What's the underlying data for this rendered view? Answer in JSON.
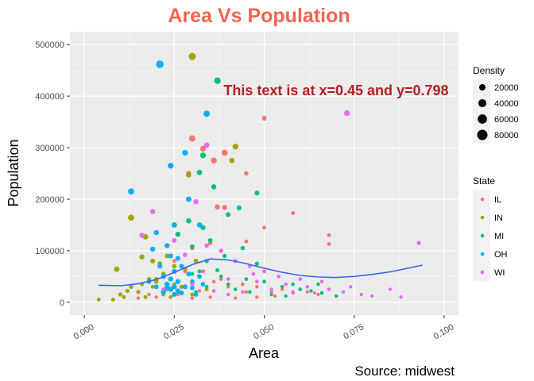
{
  "chart_data": {
    "type": "scatter",
    "title": "Area Vs Population",
    "xlabel": "Area",
    "ylabel": "Population",
    "caption": "Source: midwest",
    "annotation": {
      "text": "This text is at x=0.45 and y=0.798"
    },
    "xlim": [
      -0.004,
      0.104
    ],
    "ylim": [
      -25000,
      525000
    ],
    "x_ticks": [
      0.0,
      0.025,
      0.05,
      0.075,
      0.1
    ],
    "x_tick_labels": [
      "0.000",
      "0.025",
      "0.050",
      "0.075",
      "0.100"
    ],
    "y_ticks": [
      0,
      100000,
      200000,
      300000,
      400000,
      500000
    ],
    "y_tick_labels": [
      "0",
      "100000",
      "200000",
      "300000",
      "400000",
      "500000"
    ],
    "grid": true,
    "legend_position": "right",
    "size_legend": {
      "title": "Density",
      "labels": [
        "20000",
        "40000",
        "60000",
        "80000"
      ],
      "values": [
        20000,
        40000,
        60000,
        80000
      ]
    },
    "color_legend": {
      "title": "State",
      "labels": [
        "IL",
        "IN",
        "MI",
        "OH",
        "WI"
      ]
    },
    "colors": {
      "IL": "#F8766D",
      "IN": "#A3A500",
      "MI": "#00BF7D",
      "OH": "#00B0F6",
      "WI": "#E76BF3",
      "smooth": "#3366FF",
      "title": "#F26450",
      "annotation": "#B22222"
    },
    "series": [
      {
        "name": "IL",
        "points": [
          [
            0.03,
            318000,
            20000
          ],
          [
            0.033,
            298000,
            13000
          ],
          [
            0.036,
            275000,
            16000
          ],
          [
            0.039,
            290000,
            18000
          ],
          [
            0.029,
            250000,
            9000
          ],
          [
            0.037,
            185000,
            10000
          ],
          [
            0.039,
            184000,
            9000
          ],
          [
            0.045,
            250000,
            6000
          ],
          [
            0.05,
            357000,
            8000
          ],
          [
            0.058,
            173000,
            3000
          ],
          [
            0.068,
            130000,
            2500
          ],
          [
            0.068,
            113000,
            2500
          ],
          [
            0.05,
            145000,
            3000
          ],
          [
            0.045,
            118000,
            3000
          ],
          [
            0.035,
            115000,
            4000
          ],
          [
            0.03,
            105000,
            4000
          ],
          [
            0.025,
            80000,
            3000
          ],
          [
            0.028,
            60000,
            3000
          ],
          [
            0.033,
            60000,
            3000
          ],
          [
            0.038,
            45000,
            2000
          ],
          [
            0.04,
            30000,
            1500
          ],
          [
            0.042,
            25000,
            1500
          ],
          [
            0.045,
            20000,
            1500
          ],
          [
            0.048,
            30000,
            1500
          ],
          [
            0.052,
            20000,
            1500
          ],
          [
            0.055,
            25000,
            1500
          ],
          [
            0.058,
            18000,
            1500
          ],
          [
            0.062,
            20000,
            1500
          ],
          [
            0.065,
            15000,
            1500
          ],
          [
            0.07,
            12000,
            1500
          ],
          [
            0.022,
            20000,
            1500
          ],
          [
            0.018,
            15000,
            1500
          ],
          [
            0.026,
            15000,
            1500
          ],
          [
            0.03,
            8000,
            1500
          ],
          [
            0.035,
            10000,
            1500
          ],
          [
            0.042,
            8000,
            1500
          ],
          [
            0.048,
            10000,
            1500
          ],
          [
            0.053,
            12000,
            1500
          ],
          [
            0.02,
            10000,
            1500
          ],
          [
            0.015,
            8000,
            1500
          ],
          [
            0.044,
            35000,
            2000
          ],
          [
            0.036,
            40000,
            2000
          ],
          [
            0.032,
            22000,
            1500
          ],
          [
            0.028,
            30000,
            2000
          ]
        ]
      },
      {
        "name": "IN",
        "points": [
          [
            0.03,
            477000,
            30000
          ],
          [
            0.042,
            302000,
            15000
          ],
          [
            0.041,
            275000,
            12000
          ],
          [
            0.029,
            247000,
            10000
          ],
          [
            0.013,
            164000,
            18000
          ],
          [
            0.017,
            127000,
            12000
          ],
          [
            0.016,
            88000,
            10000
          ],
          [
            0.009,
            64000,
            12000
          ],
          [
            0.019,
            80000,
            8000
          ],
          [
            0.021,
            75000,
            7000
          ],
          [
            0.025,
            70000,
            6000
          ],
          [
            0.028,
            65000,
            5000
          ],
          [
            0.031,
            80000,
            6000
          ],
          [
            0.022,
            55000,
            6000
          ],
          [
            0.018,
            45000,
            5000
          ],
          [
            0.02,
            40000,
            5000
          ],
          [
            0.013,
            30000,
            5000
          ],
          [
            0.012,
            22000,
            4000
          ],
          [
            0.015,
            20000,
            4000
          ],
          [
            0.01,
            15000,
            4000
          ],
          [
            0.011,
            10000,
            3000
          ],
          [
            0.004,
            5000,
            3000
          ],
          [
            0.008,
            5000,
            3000
          ],
          [
            0.025,
            35000,
            4000
          ],
          [
            0.027,
            30000,
            4000
          ],
          [
            0.023,
            25000,
            3000
          ],
          [
            0.019,
            30000,
            3000
          ],
          [
            0.016,
            35000,
            3000
          ],
          [
            0.022,
            15000,
            3000
          ],
          [
            0.026,
            20000,
            3000
          ],
          [
            0.03,
            15000,
            3000
          ],
          [
            0.034,
            25000,
            3000
          ],
          [
            0.024,
            10000,
            3000
          ],
          [
            0.017,
            10000,
            3000
          ],
          [
            0.02,
            45000,
            5000
          ],
          [
            0.023,
            90000,
            7000
          ]
        ]
      },
      {
        "name": "MI",
        "points": [
          [
            0.037,
            430000,
            22000
          ],
          [
            0.033,
            285000,
            15000
          ],
          [
            0.032,
            252000,
            12000
          ],
          [
            0.036,
            224000,
            10000
          ],
          [
            0.048,
            212000,
            8000
          ],
          [
            0.043,
            183000,
            8000
          ],
          [
            0.04,
            170000,
            7000
          ],
          [
            0.029,
            158000,
            10000
          ],
          [
            0.033,
            145000,
            9000
          ],
          [
            0.026,
            132000,
            9000
          ],
          [
            0.035,
            120000,
            6000
          ],
          [
            0.03,
            108000,
            6000
          ],
          [
            0.044,
            105000,
            5000
          ],
          [
            0.039,
            90000,
            4000
          ],
          [
            0.034,
            80000,
            4000
          ],
          [
            0.048,
            75000,
            4000
          ],
          [
            0.037,
            62000,
            3000
          ],
          [
            0.03,
            55000,
            3000
          ],
          [
            0.045,
            45000,
            2500
          ],
          [
            0.05,
            40000,
            2500
          ],
          [
            0.055,
            30000,
            2000
          ],
          [
            0.058,
            35000,
            2000
          ],
          [
            0.06,
            25000,
            2000
          ],
          [
            0.063,
            22000,
            2000
          ],
          [
            0.066,
            18000,
            2000
          ],
          [
            0.07,
            12000,
            1500
          ],
          [
            0.038,
            50000,
            2500
          ],
          [
            0.04,
            35000,
            2000
          ],
          [
            0.042,
            25000,
            2000
          ],
          [
            0.046,
            20000,
            2000
          ],
          [
            0.034,
            30000,
            2000
          ],
          [
            0.031,
            20000,
            2000
          ],
          [
            0.052,
            15000,
            1500
          ],
          [
            0.056,
            12000,
            1500
          ],
          [
            0.065,
            35000,
            2000
          ],
          [
            0.032,
            60000,
            3000
          ]
        ]
      },
      {
        "name": "OH",
        "points": [
          [
            0.021,
            462000,
            35000
          ],
          [
            0.034,
            366000,
            20000
          ],
          [
            0.024,
            265000,
            15000
          ],
          [
            0.028,
            290000,
            15000
          ],
          [
            0.013,
            215000,
            18000
          ],
          [
            0.029,
            200000,
            12000
          ],
          [
            0.032,
            150000,
            10000
          ],
          [
            0.025,
            150000,
            12000
          ],
          [
            0.02,
            135000,
            10000
          ],
          [
            0.023,
            110000,
            9000
          ],
          [
            0.019,
            103000,
            9000
          ],
          [
            0.024,
            90000,
            8000
          ],
          [
            0.026,
            85000,
            8000
          ],
          [
            0.021,
            70000,
            8000
          ],
          [
            0.025,
            60000,
            8000
          ],
          [
            0.022,
            50000,
            8000
          ],
          [
            0.024,
            45000,
            9000
          ],
          [
            0.026,
            40000,
            9000
          ],
          [
            0.023,
            35000,
            10000
          ],
          [
            0.025,
            30000,
            10000
          ],
          [
            0.024,
            25000,
            10000
          ],
          [
            0.022,
            20000,
            9000
          ],
          [
            0.026,
            22000,
            9000
          ],
          [
            0.028,
            30000,
            8000
          ],
          [
            0.03,
            40000,
            7000
          ],
          [
            0.032,
            50000,
            7000
          ],
          [
            0.03,
            28000,
            7000
          ],
          [
            0.027,
            18000,
            7000
          ],
          [
            0.031,
            15000,
            6000
          ],
          [
            0.02,
            30000,
            6000
          ],
          [
            0.018,
            40000,
            6000
          ],
          [
            0.033,
            35000,
            6000
          ],
          [
            0.029,
            55000,
            7000
          ],
          [
            0.027,
            70000,
            7000
          ],
          [
            0.025,
            15000,
            8000
          ],
          [
            0.023,
            28000,
            9000
          ]
        ]
      },
      {
        "name": "WI",
        "points": [
          [
            0.073,
            367000,
            15000
          ],
          [
            0.034,
            305000,
            12000
          ],
          [
            0.031,
            195000,
            10000
          ],
          [
            0.019,
            176000,
            10000
          ],
          [
            0.016,
            130000,
            9000
          ],
          [
            0.025,
            120000,
            7000
          ],
          [
            0.093,
            115000,
            4000
          ],
          [
            0.034,
            110000,
            6000
          ],
          [
            0.038,
            100000,
            5000
          ],
          [
            0.028,
            92000,
            5000
          ],
          [
            0.042,
            80000,
            4000
          ],
          [
            0.046,
            70000,
            3000
          ],
          [
            0.05,
            60000,
            3000
          ],
          [
            0.054,
            50000,
            2500
          ],
          [
            0.048,
            40000,
            2500
          ],
          [
            0.056,
            35000,
            2000
          ],
          [
            0.062,
            30000,
            2000
          ],
          [
            0.068,
            25000,
            2000
          ],
          [
            0.072,
            20000,
            1500
          ],
          [
            0.077,
            15000,
            1500
          ],
          [
            0.08,
            12000,
            1500
          ],
          [
            0.088,
            10000,
            1500
          ],
          [
            0.058,
            20000,
            2000
          ],
          [
            0.052,
            25000,
            2000
          ],
          [
            0.044,
            20000,
            2000
          ],
          [
            0.04,
            15000,
            2000
          ],
          [
            0.036,
            22000,
            2000
          ],
          [
            0.066,
            40000,
            2000
          ],
          [
            0.06,
            45000,
            2000
          ],
          [
            0.064,
            18000,
            1500
          ],
          [
            0.074,
            30000,
            1500
          ],
          [
            0.085,
            25000,
            1500
          ],
          [
            0.04,
            45000,
            2500
          ],
          [
            0.047,
            55000,
            2500
          ],
          [
            0.022,
            25000,
            2000
          ],
          [
            0.03,
            35000,
            2500
          ]
        ]
      }
    ],
    "smooth_line": {
      "x": [
        0.004,
        0.01,
        0.015,
        0.02,
        0.025,
        0.03,
        0.035,
        0.04,
        0.045,
        0.05,
        0.055,
        0.06,
        0.065,
        0.07,
        0.075,
        0.08,
        0.085,
        0.09,
        0.094
      ],
      "y": [
        33000,
        32000,
        36000,
        44000,
        58000,
        73000,
        84000,
        82000,
        75000,
        66000,
        58000,
        52000,
        49000,
        48000,
        50000,
        54000,
        59000,
        66000,
        72000
      ]
    }
  }
}
